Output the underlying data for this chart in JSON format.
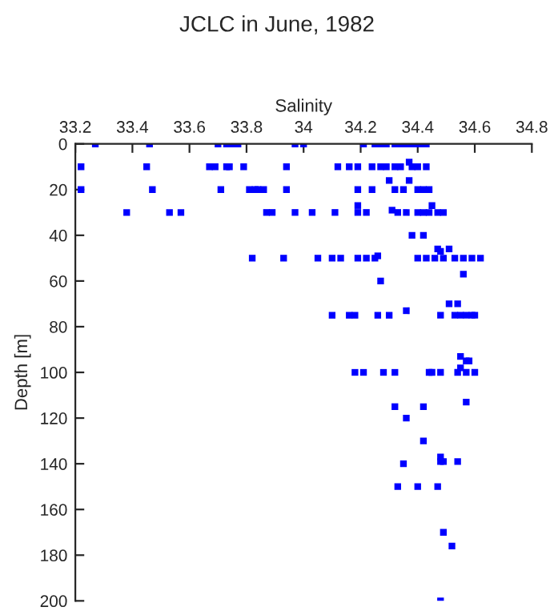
{
  "chart_data": {
    "type": "scatter",
    "title": "JCLC in June, 1982",
    "xlabel": "Salinity",
    "ylabel": "Depth [m]",
    "xlim": [
      33.2,
      34.8
    ],
    "xticks": [
      33.2,
      33.4,
      33.6,
      33.8,
      34,
      34.2,
      34.4,
      34.6,
      34.8
    ],
    "ylim": [
      200,
      0
    ],
    "yticks": [
      0,
      20,
      40,
      60,
      80,
      100,
      120,
      140,
      160,
      180,
      200
    ],
    "grid": false,
    "marker": "square",
    "series": [
      {
        "color": "#0000ff",
        "x": [
          33.27,
          33.46,
          33.7,
          33.73,
          33.75,
          33.77,
          33.97,
          34.0,
          34.21,
          34.25,
          34.27,
          34.29,
          34.32,
          34.34,
          34.36,
          34.38,
          34.4,
          34.42,
          34.43,
          33.22,
          33.45,
          33.67,
          33.69,
          33.73,
          33.74,
          33.79,
          33.94,
          34.12,
          34.16,
          34.19,
          34.24,
          34.27,
          34.29,
          34.32,
          34.34,
          34.38,
          34.4,
          34.43,
          34.37,
          33.22,
          33.47,
          33.71,
          33.81,
          33.83,
          33.84,
          33.86,
          33.94,
          34.19,
          34.24,
          34.32,
          34.35,
          34.4,
          34.42,
          34.44,
          34.3,
          34.37,
          33.38,
          33.53,
          33.57,
          33.87,
          33.89,
          33.97,
          34.03,
          34.11,
          34.19,
          34.22,
          34.33,
          34.36,
          34.4,
          34.42,
          34.44,
          34.47,
          34.49,
          34.19,
          34.45,
          34.31,
          34.38,
          34.42,
          34.47,
          34.51,
          34.48,
          33.82,
          33.93,
          34.05,
          34.1,
          34.13,
          34.19,
          34.22,
          34.25,
          34.4,
          34.43,
          34.46,
          34.49,
          34.53,
          34.56,
          34.59,
          34.62,
          34.26,
          34.56,
          34.27,
          34.51,
          34.54,
          34.1,
          34.16,
          34.18,
          34.26,
          34.3,
          34.48,
          34.53,
          34.55,
          34.57,
          34.59,
          34.6,
          34.36,
          34.55,
          34.57,
          34.58,
          34.55,
          34.18,
          34.21,
          34.28,
          34.32,
          34.44,
          34.45,
          34.48,
          34.54,
          34.57,
          34.6,
          34.57,
          34.32,
          34.42,
          34.36,
          34.42,
          34.48,
          34.48,
          34.49,
          34.54,
          34.35,
          34.33,
          34.4,
          34.47,
          34.49,
          34.52,
          34.48
        ],
        "values": [
          0,
          0,
          0,
          0,
          0,
          0,
          0,
          0,
          0,
          0,
          0,
          0,
          0,
          0,
          0,
          0,
          0,
          0,
          0,
          10,
          10,
          10,
          10,
          10,
          10,
          10,
          10,
          10,
          10,
          10,
          10,
          10,
          10,
          10,
          10,
          10,
          10,
          10,
          8,
          20,
          20,
          20,
          20,
          20,
          20,
          20,
          20,
          20,
          20,
          20,
          20,
          20,
          20,
          20,
          16,
          16,
          30,
          30,
          30,
          30,
          30,
          30,
          30,
          30,
          30,
          30,
          30,
          30,
          30,
          30,
          30,
          30,
          30,
          27,
          27,
          29,
          40,
          40,
          46,
          46,
          47,
          50,
          50,
          50,
          50,
          50,
          50,
          50,
          50,
          50,
          50,
          50,
          50,
          50,
          50,
          50,
          50,
          49,
          57,
          60,
          70,
          70,
          75,
          75,
          75,
          75,
          75,
          75,
          75,
          75,
          75,
          75,
          75,
          73,
          93,
          95,
          95,
          98,
          100,
          100,
          100,
          100,
          100,
          100,
          100,
          100,
          100,
          100,
          113,
          115,
          115,
          120,
          130,
          137,
          139,
          139,
          139,
          140,
          150,
          150,
          150,
          170,
          176,
          200
        ]
      }
    ]
  }
}
